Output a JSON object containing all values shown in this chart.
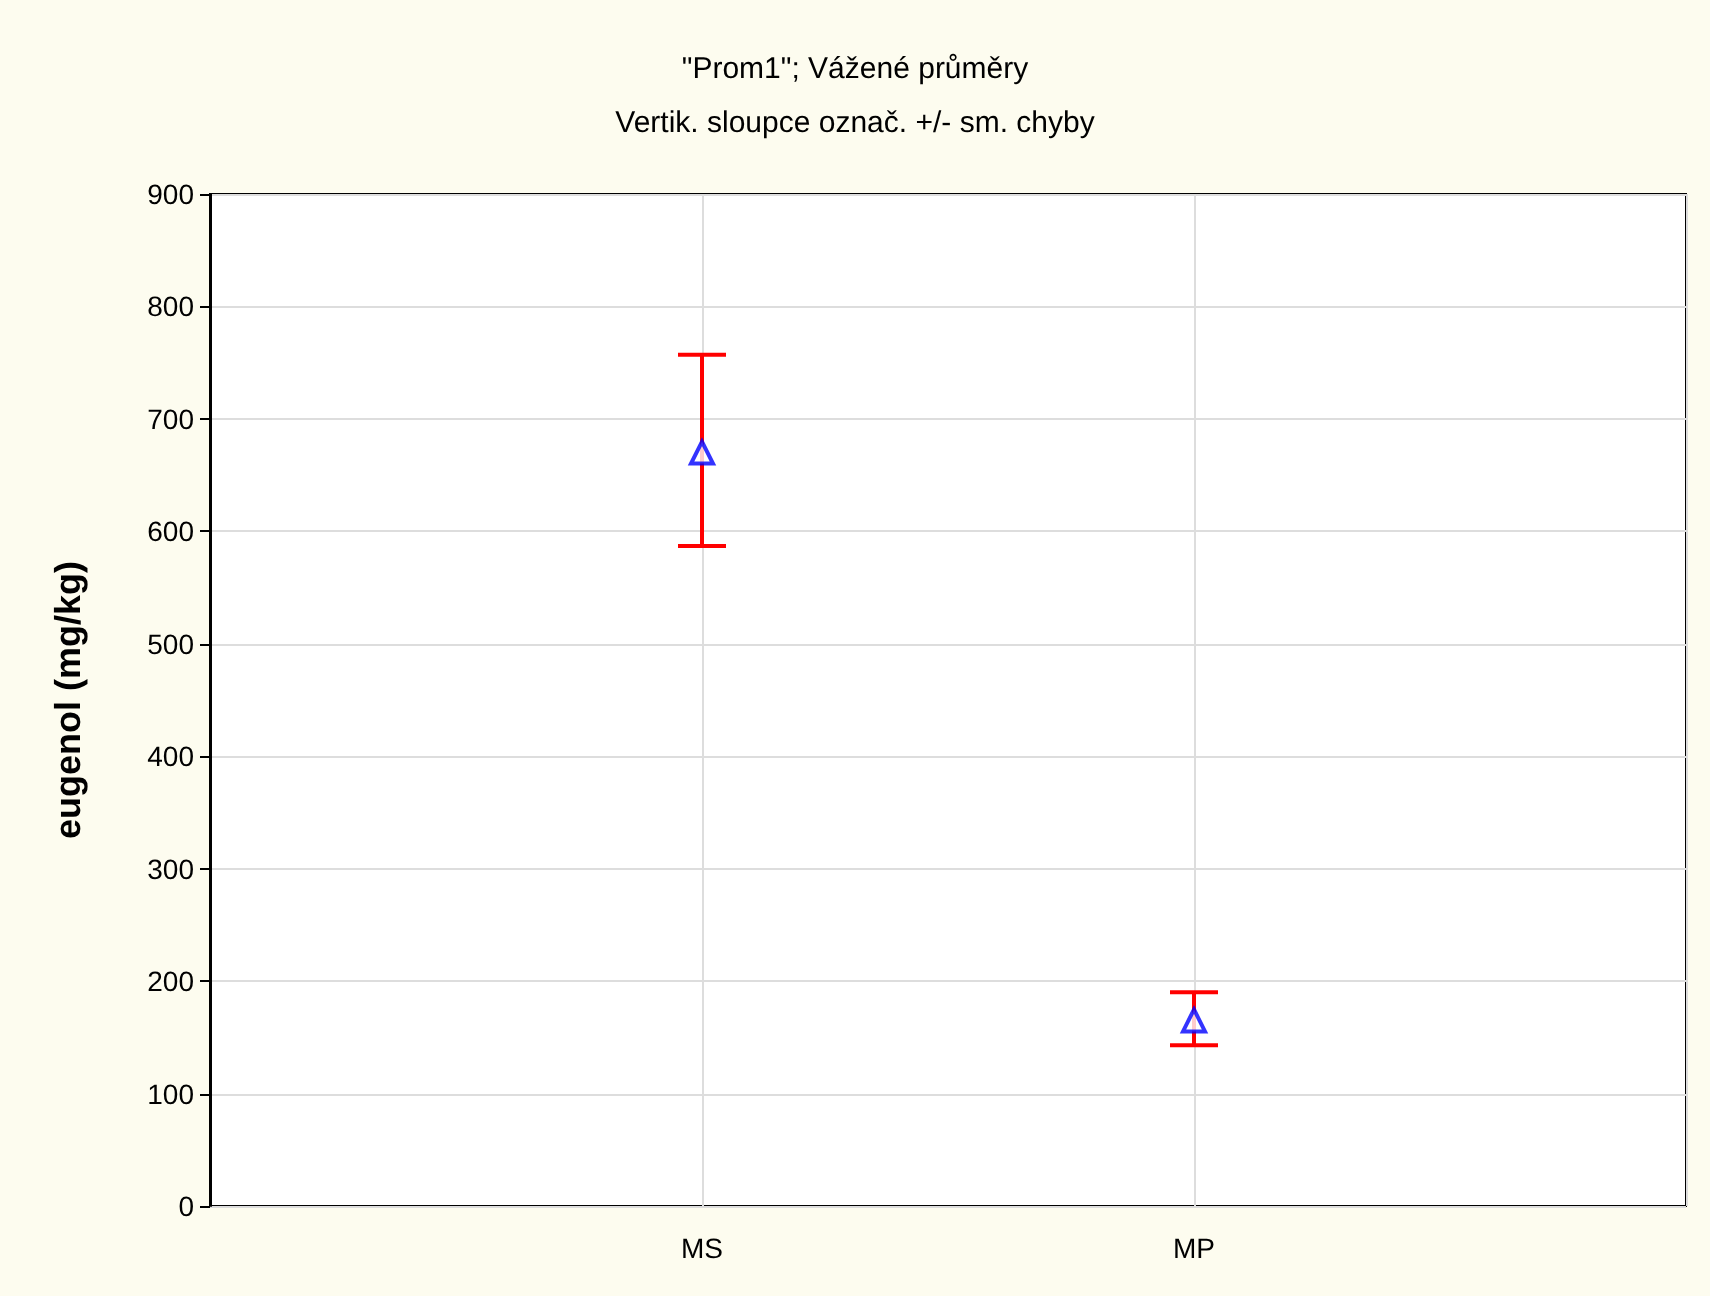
{
  "chart_data": {
    "type": "scatter",
    "title": "\"Prom1\"; Vážené průměry",
    "subtitle": "Vertik. sloupce označ. +/- sm. chyby",
    "ylabel": "eugenol (mg/kg)",
    "categories": [
      "MS",
      "MP"
    ],
    "series": [
      {
        "color": "#0000ff",
        "values": [
          670,
          165
        ],
        "errors": [
          [
            587,
            757
          ],
          [
            143,
            190
          ]
        ]
      }
    ],
    "ylim": [
      0,
      900
    ],
    "yticks": [
      0,
      100,
      200,
      300,
      400,
      500,
      600,
      700,
      800,
      900
    ],
    "grid": true,
    "marker": "triangle"
  }
}
